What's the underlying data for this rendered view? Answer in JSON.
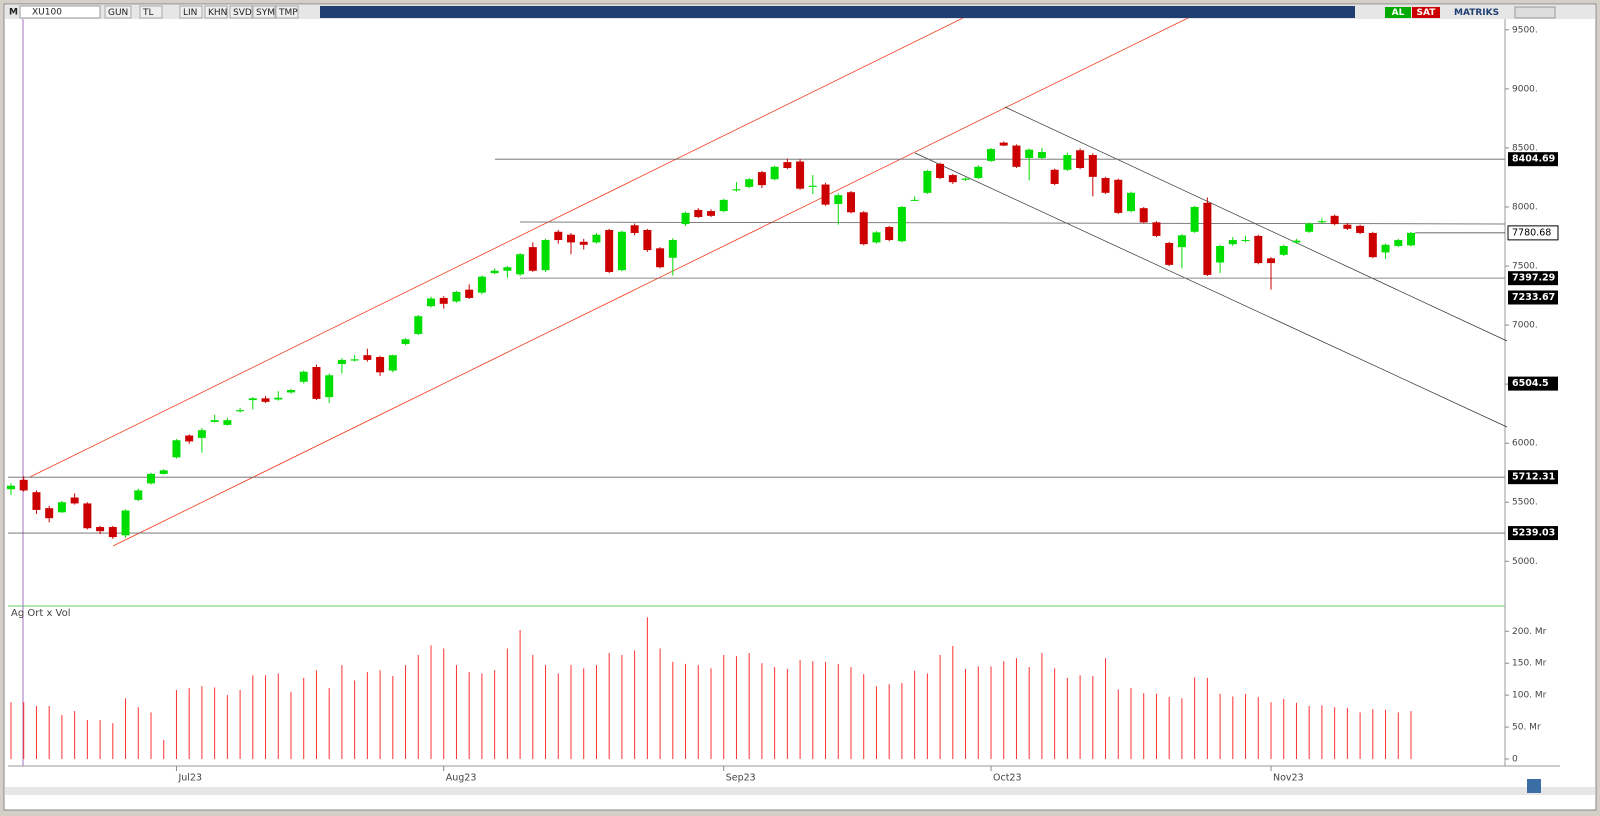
{
  "toolbar": {
    "menu": "M",
    "symbol": "XU100",
    "buttons": [
      "GUN",
      "TL",
      "LIN",
      "KHN",
      "SVD",
      "SYM",
      "TMP"
    ],
    "buy": "AL",
    "sell": "SAT",
    "brand": "MATRIKS"
  },
  "chart_data": [
    {
      "type": "candlestick",
      "categories": [
        null,
        null,
        null,
        null,
        null,
        null,
        null,
        null,
        null,
        null,
        null,
        null,
        null,
        "Jul23",
        null,
        null,
        null,
        null,
        null,
        null,
        null,
        null,
        null,
        null,
        null,
        null,
        null,
        null,
        null,
        null,
        null,
        null,
        null,
        null,
        "Aug23",
        null,
        null,
        null,
        null,
        null,
        null,
        null,
        null,
        null,
        null,
        null,
        null,
        null,
        null,
        null,
        null,
        null,
        null,
        null,
        null,
        null,
        "Sep23",
        null,
        null,
        null,
        null,
        null,
        null,
        null,
        null,
        null,
        null,
        null,
        null,
        null,
        null,
        null,
        null,
        null,
        null,
        null,
        null,
        "Oct23",
        null,
        null,
        null,
        null,
        null,
        null,
        null,
        null,
        null,
        null,
        null,
        null,
        null,
        null,
        null,
        null,
        null,
        null,
        null,
        null,
        null,
        "Nov23",
        null,
        null,
        null,
        null,
        null,
        null,
        null,
        null,
        null,
        null,
        null
      ],
      "open": [
        5610,
        5690,
        5585,
        5450,
        5415,
        5540,
        5490,
        5290,
        5290,
        5220,
        5520,
        5660,
        5740,
        5880,
        6065,
        6045,
        6180,
        6155,
        6270,
        6365,
        6380,
        6370,
        6430,
        6520,
        6645,
        6390,
        6670,
        6700,
        6745,
        6730,
        6615,
        6840,
        6925,
        7160,
        7230,
        7200,
        7300,
        7275,
        7440,
        7460,
        7430,
        7660,
        7465,
        7790,
        7765,
        7705,
        7700,
        7805,
        7465,
        7845,
        7805,
        7650,
        7570,
        7855,
        7975,
        7965,
        7965,
        8140,
        8170,
        8295,
        8235,
        8380,
        8385,
        8170,
        8190,
        8025,
        8125,
        7955,
        7700,
        7830,
        7710,
        8055,
        8120,
        8365,
        8270,
        8230,
        8245,
        8390,
        8545,
        8520,
        8415,
        8415,
        8315,
        8315,
        8480,
        8440,
        8245,
        8230,
        7965,
        7990,
        7870,
        7695,
        7660,
        7790,
        8035,
        7530,
        7685,
        7715,
        7755,
        7565,
        7595,
        7700,
        7790,
        7870,
        7925,
        7850,
        7840,
        7780,
        7615,
        7670,
        7675
      ],
      "high": [
        5660,
        5720,
        5600,
        5470,
        5510,
        5575,
        5500,
        5300,
        5300,
        5440,
        5615,
        5750,
        5780,
        6035,
        6075,
        6130,
        6240,
        6215,
        6300,
        6390,
        6400,
        6440,
        6460,
        6615,
        6665,
        6590,
        6720,
        6745,
        6800,
        6740,
        6750,
        6890,
        7085,
        7240,
        7245,
        7290,
        7345,
        7420,
        7480,
        7500,
        7610,
        7700,
        7730,
        7805,
        7780,
        7730,
        7780,
        7815,
        7800,
        7860,
        7815,
        7660,
        7735,
        7960,
        7990,
        7980,
        8070,
        8210,
        8245,
        8305,
        8350,
        8410,
        8405,
        8270,
        8205,
        8115,
        8135,
        7965,
        7795,
        7840,
        8010,
        8090,
        8315,
        8375,
        8280,
        8250,
        8355,
        8500,
        8555,
        8530,
        8495,
        8500,
        8325,
        8460,
        8495,
        8455,
        8255,
        8240,
        8130,
        8000,
        7880,
        7705,
        7770,
        8010,
        8080,
        7680,
        7745,
        7755,
        7765,
        7575,
        7680,
        7730,
        7870,
        7905,
        7935,
        7865,
        7850,
        7790,
        7690,
        7730,
        7790
      ],
      "low": [
        5560,
        5590,
        5400,
        5330,
        5410,
        5480,
        5270,
        5230,
        5190,
        5200,
        5510,
        5650,
        5735,
        5870,
        5995,
        5920,
        6175,
        6150,
        6260,
        6285,
        6340,
        6360,
        6420,
        6505,
        6365,
        6340,
        6590,
        6690,
        6690,
        6570,
        6600,
        6830,
        6915,
        7150,
        7140,
        7190,
        7220,
        7260,
        7430,
        7400,
        7415,
        7450,
        7450,
        7690,
        7600,
        7640,
        7690,
        7440,
        7455,
        7760,
        7620,
        7480,
        7420,
        7840,
        7905,
        7915,
        7955,
        8130,
        8160,
        8160,
        8225,
        8320,
        8145,
        8110,
        8010,
        7850,
        7945,
        7675,
        7690,
        7710,
        7700,
        8050,
        8110,
        8235,
        8195,
        8220,
        8235,
        8380,
        8515,
        8330,
        8225,
        8405,
        8185,
        8305,
        8320,
        8090,
        8110,
        7940,
        7955,
        7860,
        7745,
        7500,
        7480,
        7780,
        7415,
        7440,
        7670,
        7700,
        7515,
        7300,
        7585,
        7690,
        7780,
        7860,
        7845,
        7805,
        7770,
        7565,
        7560,
        7660,
        7665
      ],
      "close": [
        5640,
        5600,
        5435,
        5365,
        5500,
        5490,
        5280,
        5255,
        5205,
        5430,
        5600,
        5740,
        5770,
        6025,
        6015,
        6110,
        6195,
        6195,
        6280,
        6380,
        6350,
        6385,
        6450,
        6605,
        6375,
        6575,
        6705,
        6710,
        6705,
        6600,
        6745,
        6880,
        7075,
        7225,
        7180,
        7280,
        7230,
        7410,
        7460,
        7490,
        7600,
        7460,
        7720,
        7720,
        7700,
        7680,
        7765,
        7450,
        7790,
        7780,
        7635,
        7490,
        7720,
        7950,
        7915,
        7925,
        8060,
        8150,
        8235,
        8185,
        8340,
        8330,
        8155,
        8180,
        8020,
        8100,
        7955,
        7685,
        7785,
        7720,
        8000,
        8060,
        8305,
        8245,
        8210,
        8240,
        8340,
        8490,
        8520,
        8340,
        8485,
        8465,
        8195,
        8440,
        8330,
        8255,
        8120,
        7950,
        8120,
        7870,
        7755,
        7510,
        7760,
        8000,
        7425,
        7670,
        7720,
        7720,
        7525,
        7525,
        7670,
        7715,
        7860,
        7880,
        7855,
        7815,
        7780,
        7575,
        7680,
        7720,
        7780.68
      ],
      "up_color": "#00dd00",
      "down_color": "#cc0000",
      "ylim": [
        4630,
        9600
      ],
      "yticks": [
        {
          "value": 5000,
          "label": "5000."
        },
        {
          "value": 5500,
          "label": "5500."
        },
        {
          "value": 6000,
          "label": "6000."
        },
        {
          "value": 6500,
          "label": "6500."
        },
        {
          "value": 7000,
          "label": "7000."
        },
        {
          "value": 7500,
          "label": "7500."
        },
        {
          "value": 8000,
          "label": "8000."
        },
        {
          "value": 8500,
          "label": "8500."
        },
        {
          "value": 9000,
          "label": "9000."
        },
        {
          "value": 9500,
          "label": "9500."
        }
      ],
      "levels": [
        8404.69,
        7397.29,
        7233.67,
        6504.5,
        5712.31,
        5239.03
      ]
    },
    {
      "type": "bar",
      "title": "Ag Ort x Vol",
      "color": "#ff3030",
      "values": [
        89,
        89,
        83,
        83,
        69,
        75,
        61,
        61,
        56,
        95,
        81,
        73,
        30,
        108,
        111,
        114,
        112,
        100,
        108,
        131,
        131,
        134,
        105,
        127,
        139,
        111,
        147,
        123,
        136,
        139,
        130,
        147,
        163,
        178,
        173,
        147,
        136,
        134,
        139,
        173,
        202,
        163,
        147,
        134,
        147,
        142,
        147,
        166,
        163,
        170,
        222,
        173,
        152,
        149,
        147,
        142,
        163,
        161,
        166,
        150,
        144,
        141,
        155,
        153,
        152,
        149,
        144,
        133,
        114,
        117,
        119,
        138,
        134,
        163,
        177,
        141,
        145,
        145,
        153,
        158,
        144,
        166,
        142,
        127,
        131,
        130,
        158,
        109,
        111,
        103,
        102,
        97,
        95,
        128,
        127,
        102,
        98,
        102,
        97,
        89,
        94,
        88,
        83,
        84,
        81,
        80,
        73,
        78,
        77,
        73,
        75
      ],
      "ylim": [
        0,
        238
      ],
      "yticks": [
        0,
        {
          "value": 50,
          "label": "50. Mr"
        },
        {
          "value": 100,
          "label": "100. Mr"
        },
        {
          "value": 150,
          "label": "150. Mr"
        },
        {
          "value": 200,
          "label": "200. Mr"
        }
      ]
    }
  ]
}
